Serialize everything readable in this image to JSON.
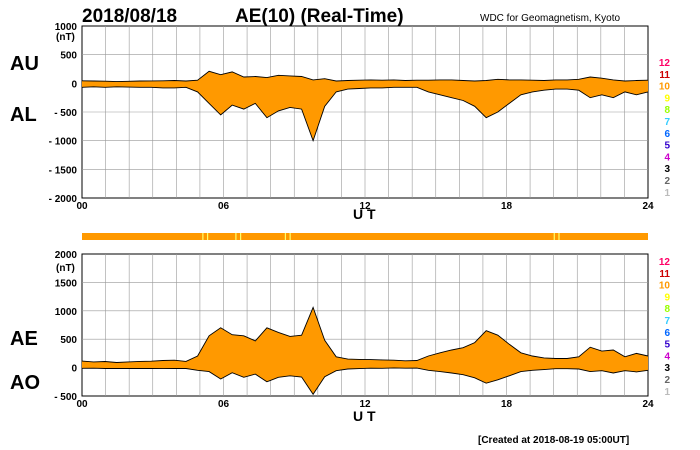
{
  "header": {
    "date": "2018/08/18",
    "title": "AE(10) (Real-Time)",
    "source": "WDC for Geomagnetism, Kyoto"
  },
  "footer": {
    "created": "[Created at 2018-08-19 05:00UT]"
  },
  "colors": {
    "fill": "#ff9900",
    "line": "#000000",
    "grid": "#999999",
    "station_bar": "#ff9900",
    "station_marks": "#ffff66"
  },
  "station_legend": [
    {
      "label": "12",
      "color": "#ff0066"
    },
    {
      "label": "11",
      "color": "#cc0000"
    },
    {
      "label": "10",
      "color": "#ff9900"
    },
    {
      "label": "9",
      "color": "#ffff00"
    },
    {
      "label": "8",
      "color": "#99ff00"
    },
    {
      "label": "7",
      "color": "#33ccff"
    },
    {
      "label": "6",
      "color": "#0066ff"
    },
    {
      "label": "5",
      "color": "#3300cc"
    },
    {
      "label": "4",
      "color": "#cc00cc"
    },
    {
      "label": "3",
      "color": "#000000"
    },
    {
      "label": "2",
      "color": "#666666"
    },
    {
      "label": "1",
      "color": "#bbbbbb"
    }
  ],
  "chart_data": [
    {
      "type": "area",
      "series": [
        {
          "name": "AU",
          "values": [
            45,
            40,
            38,
            30,
            35,
            40,
            42,
            45,
            50,
            40,
            55,
            210,
            150,
            200,
            110,
            120,
            100,
            140,
            130,
            120,
            60,
            80,
            40,
            50,
            55,
            60,
            55,
            60,
            50,
            55,
            55,
            60,
            60,
            50,
            40,
            50,
            70,
            60,
            60,
            55,
            50,
            60,
            60,
            70,
            110,
            90,
            60,
            40,
            50,
            55
          ]
        },
        {
          "name": "AL",
          "values": [
            -70,
            -60,
            -70,
            -60,
            -65,
            -70,
            -70,
            -80,
            -80,
            -70,
            -150,
            -350,
            -550,
            -380,
            -450,
            -350,
            -600,
            -480,
            -420,
            -450,
            -1000,
            -400,
            -150,
            -100,
            -90,
            -80,
            -80,
            -70,
            -70,
            -70,
            -150,
            -200,
            -250,
            -300,
            -400,
            -600,
            -500,
            -350,
            -200,
            -150,
            -120,
            -100,
            -100,
            -120,
            -250,
            -200,
            -250,
            -150,
            -200,
            -150
          ]
        }
      ],
      "x": [
        0,
        0.49,
        0.98,
        1.47,
        1.96,
        2.45,
        2.94,
        3.43,
        3.92,
        4.41,
        4.9,
        5.39,
        5.88,
        6.37,
        6.86,
        7.35,
        7.84,
        8.33,
        8.82,
        9.31,
        9.8,
        10.29,
        10.78,
        11.27,
        11.76,
        12.24,
        12.73,
        13.22,
        13.71,
        14.2,
        14.69,
        15.18,
        15.67,
        16.16,
        16.65,
        17.14,
        17.63,
        18.12,
        18.61,
        19.1,
        19.59,
        20.08,
        20.57,
        21.06,
        21.55,
        22.04,
        22.53,
        23.02,
        23.51,
        24
      ],
      "xlabel": "U T",
      "ylabel": "",
      "y_unit": "(nT)",
      "xlim": [
        0,
        24
      ],
      "ylim": [
        -2000,
        1000
      ],
      "x_ticks": [
        "00",
        "06",
        "12",
        "18",
        "24"
      ],
      "y_ticks": [
        "1000",
        "500",
        "0",
        "- 500",
        "- 1000",
        "- 1500",
        "- 2000"
      ],
      "series_labels": [
        "AU",
        "AL"
      ],
      "grid": true
    },
    {
      "type": "area",
      "series": [
        {
          "name": "AE",
          "values": [
            115,
            100,
            108,
            90,
            100,
            110,
            112,
            125,
            130,
            110,
            205,
            560,
            700,
            580,
            560,
            470,
            700,
            620,
            550,
            570,
            1060,
            480,
            190,
            150,
            145,
            140,
            135,
            130,
            120,
            125,
            205,
            260,
            310,
            350,
            440,
            650,
            570,
            410,
            260,
            205,
            170,
            160,
            160,
            190,
            360,
            290,
            310,
            190,
            250,
            205
          ]
        },
        {
          "name": "AO",
          "values": [
            -12,
            -10,
            -16,
            -15,
            -15,
            -15,
            -14,
            -18,
            -15,
            -15,
            -47,
            -70,
            -200,
            -90,
            -170,
            -115,
            -250,
            -170,
            -145,
            -165,
            -470,
            -160,
            -55,
            -25,
            -18,
            -10,
            -12,
            -5,
            -10,
            -8,
            -48,
            -70,
            -95,
            -125,
            -180,
            -275,
            -215,
            -145,
            -70,
            -48,
            -35,
            -20,
            -20,
            -25,
            -70,
            -55,
            -95,
            -55,
            -75,
            -48
          ]
        }
      ],
      "x": [
        0,
        0.49,
        0.98,
        1.47,
        1.96,
        2.45,
        2.94,
        3.43,
        3.92,
        4.41,
        4.9,
        5.39,
        5.88,
        6.37,
        6.86,
        7.35,
        7.84,
        8.33,
        8.82,
        9.31,
        9.8,
        10.29,
        10.78,
        11.27,
        11.76,
        12.24,
        12.73,
        13.22,
        13.71,
        14.2,
        14.69,
        15.18,
        15.67,
        16.16,
        16.65,
        17.14,
        17.63,
        18.12,
        18.61,
        19.1,
        19.59,
        20.08,
        20.57,
        21.06,
        21.55,
        22.04,
        22.53,
        23.02,
        23.51,
        24
      ],
      "xlabel": "U T",
      "ylabel": "",
      "y_unit": "(nT)",
      "xlim": [
        0,
        24
      ],
      "ylim": [
        -500,
        2000
      ],
      "x_ticks": [
        "00",
        "06",
        "12",
        "18",
        "24"
      ],
      "y_ticks": [
        "2000",
        "1500",
        "1000",
        "500",
        "0",
        "- 500"
      ],
      "series_labels": [
        "AE",
        "AO"
      ],
      "grid": true
    }
  ]
}
